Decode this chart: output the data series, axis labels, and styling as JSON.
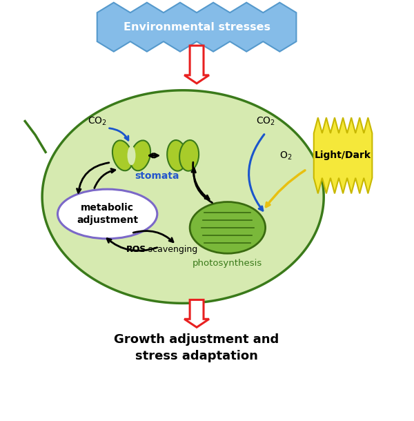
{
  "bg_color": "#ffffff",
  "leaf_color": "#d6eab0",
  "leaf_edge_color": "#3a7a1a",
  "env_stress_text": "Environmental stresses",
  "env_stress_bg": "#7ab8e8",
  "stomata_label": "stomata",
  "stomata_color": "#a8cc2a",
  "metabolic_text": "metabolic\nadjustment",
  "metabolic_ellipse_color": "#7b68c8",
  "ros_text": "ROS scavenging",
  "photosynthesis_text": "photosynthesis",
  "chloroplast_color": "#5a9a1a",
  "chloroplast_fill": "#7ab83a",
  "light_dark_text": "Light/Dark",
  "light_dark_bg": "#f5e642",
  "co2_color": "#000000",
  "bottom_text_line1": "Growth adjustment and",
  "bottom_text_line2": "stress adaptation",
  "red_arrow_color": "#e82020",
  "black_arrow_color": "#111111",
  "blue_arrow_color": "#1a55cc",
  "yellow_arrow_color": "#e8c010"
}
